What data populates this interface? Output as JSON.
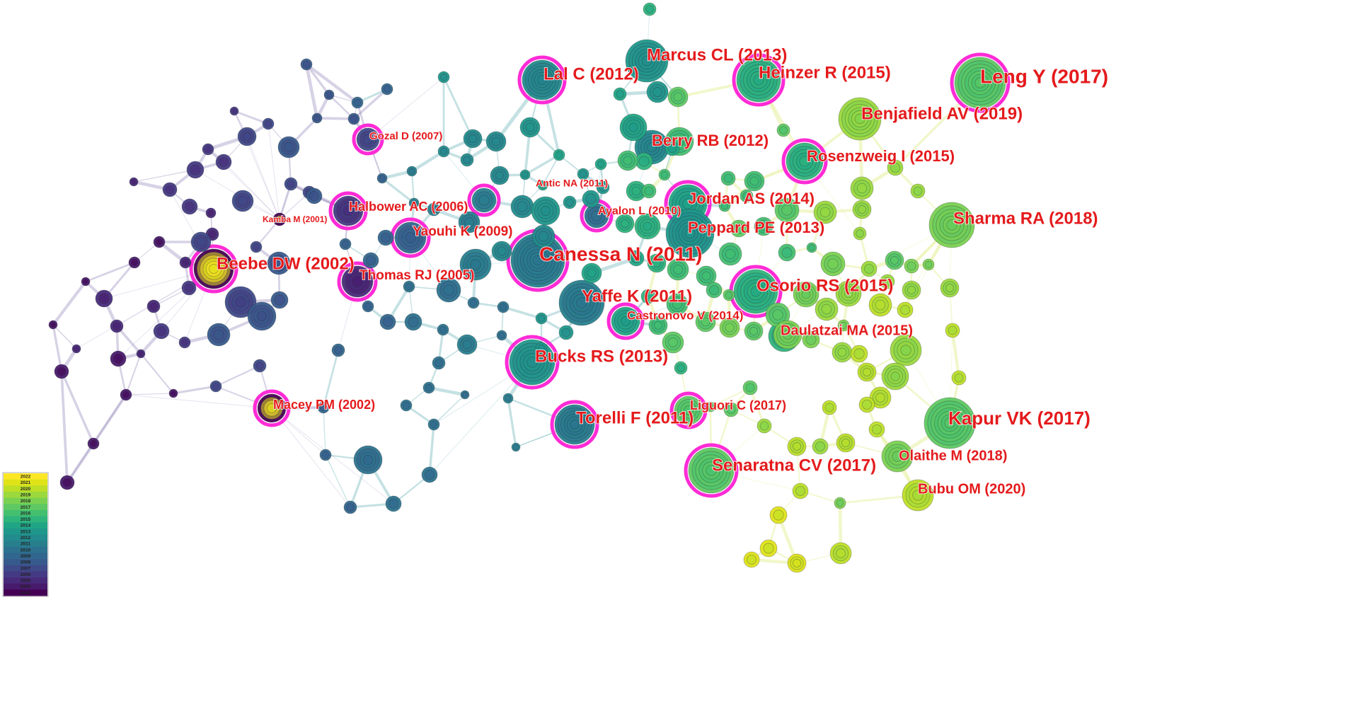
{
  "network": {
    "colors": {
      "halo": "#ff2bd6",
      "label": "#e41a1c",
      "edge_old": "#8b7fb4",
      "edge_mid": "#5aa9b0",
      "edge_new": "#d9e86a"
    },
    "legend": {
      "years": [
        "2022",
        "2021",
        "2020",
        "2019",
        "2018",
        "2017",
        "2016",
        "2015",
        "2014",
        "2013",
        "2012",
        "2011",
        "2010",
        "2009",
        "2008",
        "2007",
        "2006",
        "2005",
        "2004",
        "2003"
      ],
      "colors": [
        "#fde725",
        "#dfe318",
        "#bddf26",
        "#9bd93c",
        "#7ad151",
        "#5ec962",
        "#44bf70",
        "#2fb47c",
        "#21a685",
        "#1f988b",
        "#228b8d",
        "#277f8e",
        "#2c728e",
        "#31668e",
        "#375a8c",
        "#3e4a89",
        "#443a83",
        "#472a7a",
        "#481a6c",
        "#440154"
      ]
    },
    "labeled_nodes": [
      {
        "label": "Leng Y (2017)",
        "year": 2017
      },
      {
        "label": "Benjafield AV (2019)",
        "year": 2019
      },
      {
        "label": "Heinzer R (2015)",
        "year": 2015
      },
      {
        "label": "Marcus CL (2013)",
        "year": 2013
      },
      {
        "label": "Lal C (2012)",
        "year": 2012
      },
      {
        "label": "Berry RB (2012)",
        "year": 2012
      },
      {
        "label": "Rosenzweig I (2015)",
        "year": 2015
      },
      {
        "label": "Gozal D (2007)",
        "year": 2007
      },
      {
        "label": "Antic NA (2011)",
        "year": 2011
      },
      {
        "label": "Jordan AS (2014)",
        "year": 2014
      },
      {
        "label": "Ayalon L (2010)",
        "year": 2010
      },
      {
        "label": "Halbower AC (2006)",
        "year": 2006
      },
      {
        "label": "Kamba M (2001)",
        "year": 2001
      },
      {
        "label": "Yaouhi K (2009)",
        "year": 2009
      },
      {
        "label": "Peppard PE (2013)",
        "year": 2013
      },
      {
        "label": "Sharma RA (2018)",
        "year": 2018
      },
      {
        "label": "Canessa N (2011)",
        "year": 2011
      },
      {
        "label": "Beebe DW (2002)",
        "year": 2002
      },
      {
        "label": "Thomas RJ (2005)",
        "year": 2005
      },
      {
        "label": "Osorio RS (2015)",
        "year": 2015
      },
      {
        "label": "Yaffe K (2011)",
        "year": 2011
      },
      {
        "label": "Castronovo V (2014)",
        "year": 2014
      },
      {
        "label": "Daulatzai MA (2015)",
        "year": 2015
      },
      {
        "label": "Bucks RS (2013)",
        "year": 2013
      },
      {
        "label": "Macey PM (2002)",
        "year": 2002
      },
      {
        "label": "Liguori C (2017)",
        "year": 2017
      },
      {
        "label": "Torelli F (2011)",
        "year": 2011
      },
      {
        "label": "Kapur VK (2017)",
        "year": 2017
      },
      {
        "label": "Senaratna CV (2017)",
        "year": 2017
      },
      {
        "label": "Olaithe M (2018)",
        "year": 2018
      },
      {
        "label": "Bubu OM (2020)",
        "year": 2020
      }
    ]
  }
}
